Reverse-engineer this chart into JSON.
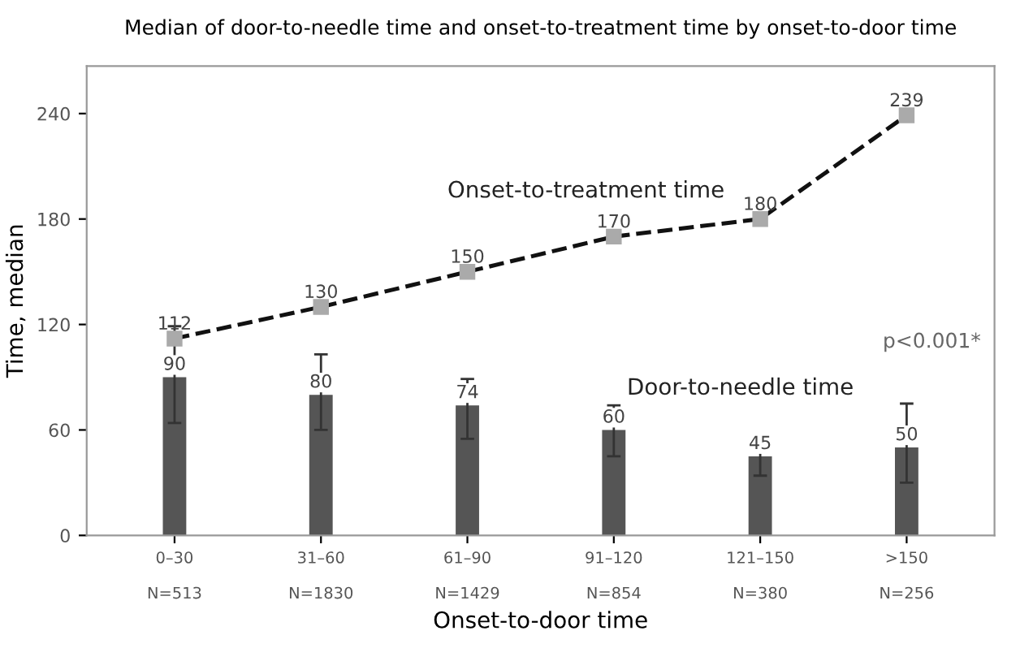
{
  "chart_data": {
    "type": "bar",
    "title": "Median of door-to-needle time and onset-to-treatment time by onset-to-door time",
    "xlabel": "Onset-to-door time",
    "ylabel": "Time, median",
    "categories": [
      "0–30\n\nN=513",
      "31–60\n\nN=1830",
      "61–90\n\nN=1429",
      "91–120\n\nN=854",
      "121–150\n\nN=380",
      ">150\n\nN=256"
    ],
    "series": [
      {
        "name": "Door-to-needle time",
        "color": "#555555",
        "values": [
          90,
          80,
          74,
          60,
          45,
          50
        ],
        "errors": [
          [
            64,
            119
          ],
          [
            60,
            103
          ],
          [
            55,
            89
          ],
          [
            45,
            74
          ],
          [
            34,
            55
          ],
          [
            30,
            75
          ]
        ]
      },
      {
        "name": "Onset-to-treatment time",
        "type": "line",
        "color": "#111111",
        "values": [
          112,
          130,
          150,
          170,
          180,
          239
        ],
        "marker": "square",
        "line_style": "dashed"
      }
    ],
    "ylim": [
      0,
      267
    ],
    "yticks": [
      0,
      60,
      120,
      180,
      240
    ],
    "data_labels": true,
    "grid": false,
    "legend": false,
    "annotations": [
      "p<0.001*"
    ]
  }
}
